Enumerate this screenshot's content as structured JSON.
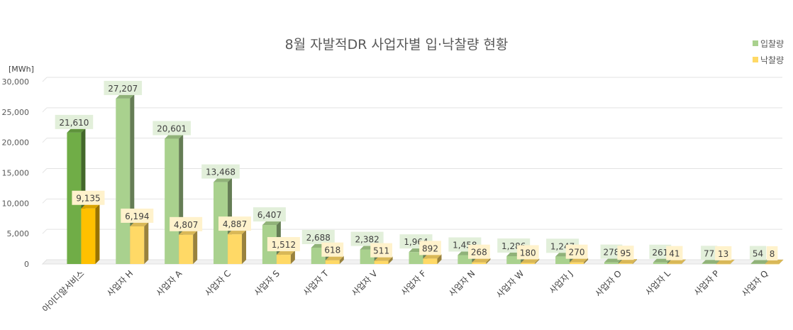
{
  "chart_data": {
    "type": "bar",
    "title": "8월 자발적DR 사업자별 입·낙찰량 현황",
    "unit_label": "[MWh]",
    "ylim": [
      0,
      30000
    ],
    "y_ticks": [
      "0",
      "5,000",
      "10,000",
      "15,000",
      "20,000",
      "25,000",
      "30,000"
    ],
    "grid": true,
    "legend_position": "top-right",
    "categories": [
      "아이디알서비스",
      "사업자 H",
      "사업자 A",
      "사업자 C",
      "사업자 S",
      "사업자 T",
      "사업자 V",
      "사업자 F",
      "사업자 N",
      "사업자 W",
      "사업자 J",
      "사업자 O",
      "사업자 L",
      "사업자 P",
      "사업자 Q"
    ],
    "series": [
      {
        "name": "입찰량",
        "values": [
          21610,
          27207,
          20601,
          13468,
          6407,
          2688,
          2382,
          1964,
          1458,
          1286,
          1247,
          278,
          261,
          77,
          54
        ],
        "labels": [
          "21,610",
          "27,207",
          "20,601",
          "13,468",
          "6,407",
          "2,688",
          "2,382",
          "1,964",
          "1,458",
          "1,286",
          "1,247",
          "278",
          "261",
          "77",
          "54"
        ],
        "color": "#a9d18e",
        "highlight_color": "#70ad47",
        "label_bg": "#e2efda"
      },
      {
        "name": "낙찰량",
        "values": [
          9135,
          6194,
          4807,
          4887,
          1512,
          618,
          511,
          892,
          268,
          180,
          270,
          95,
          41,
          13,
          8
        ],
        "labels": [
          "9,135",
          "6,194",
          "4,807",
          "4,887",
          "1,512",
          "618",
          "511",
          "892",
          "268",
          "180",
          "270",
          "95",
          "41",
          "13",
          "8"
        ],
        "color": "#ffd966",
        "highlight_color": "#ffc000",
        "label_bg": "#fff2cc"
      }
    ]
  }
}
